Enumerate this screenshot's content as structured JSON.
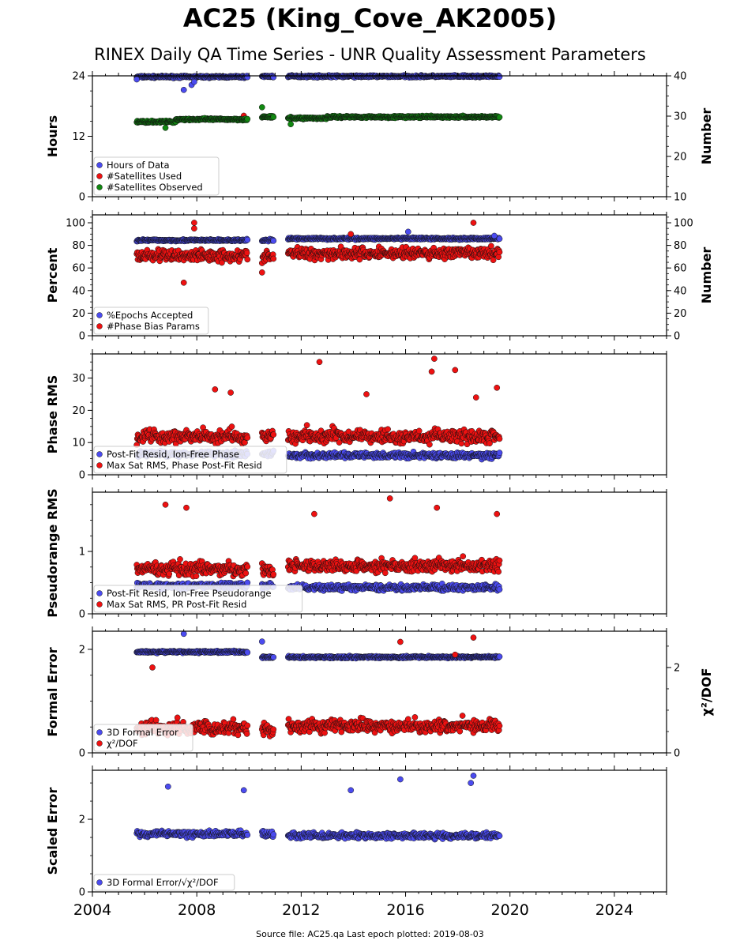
{
  "title": "AC25 (King_Cove_AK2005)",
  "subtitle": "RINEX Daily QA Time Series - UNR Quality Assessment Parameters",
  "footer": "Source file: AC25.qa Last epoch plotted: 2019-08-03",
  "colors": {
    "blue": "#4b4bef",
    "red": "#ee1111",
    "green": "#118811",
    "edge": "#111111"
  },
  "chart_data": [
    {
      "type": "scatter",
      "ylabel": "Hours",
      "ylabel_right": "Number",
      "xlim": [
        2004,
        2026
      ],
      "ylim": [
        0,
        24
      ],
      "ylim_right": [
        10,
        40
      ],
      "yticks": [
        "0",
        "12",
        "24"
      ],
      "yticks_right": [
        "10",
        "20",
        "30",
        "40"
      ],
      "legend_placement": "lower-left",
      "series": [
        {
          "name": "Hours of Data",
          "color": "blue",
          "axis": "left",
          "segments": [
            [
              2005.7,
              2009.95,
              23.8
            ],
            [
              2010.5,
              2010.95,
              23.9
            ],
            [
              2011.5,
              2019.6,
              23.9
            ]
          ],
          "outliers": [
            [
              2005.7,
              23.3
            ],
            [
              2007.5,
              21.2
            ],
            [
              2007.8,
              22.2
            ],
            [
              2007.9,
              22.8
            ]
          ]
        },
        {
          "name": "#Satellites Used",
          "color": "red",
          "axis": "right",
          "segments": [],
          "outliers": [
            [
              2009.8,
              30.1
            ]
          ]
        },
        {
          "name": "#Satellites Observed",
          "color": "green",
          "axis": "right",
          "segments": [
            [
              2005.7,
              2007.2,
              28.6
            ],
            [
              2007.2,
              2009.95,
              29.2
            ],
            [
              2010.5,
              2010.95,
              29.8
            ],
            [
              2011.5,
              2013.0,
              29.5
            ],
            [
              2013.0,
              2019.6,
              29.8
            ]
          ],
          "outliers": [
            [
              2010.5,
              32.2
            ],
            [
              2006.8,
              27.1
            ],
            [
              2011.6,
              28.0
            ]
          ]
        }
      ]
    },
    {
      "type": "scatter",
      "ylabel": "Percent",
      "ylabel_right": "Number",
      "xlim": [
        2004,
        2026
      ],
      "ylim": [
        0,
        107
      ],
      "ylim_right": [
        0,
        107
      ],
      "yticks": [
        "0",
        "20",
        "40",
        "60",
        "80",
        "100"
      ],
      "yticks_right": [
        "0",
        "20",
        "40",
        "60",
        "80",
        "100"
      ],
      "legend_placement": "lower-left",
      "series": [
        {
          "name": "%Epochs Accepted",
          "color": "blue",
          "axis": "left",
          "segments": [
            [
              2005.7,
              2009.95,
              84.5
            ],
            [
              2010.5,
              2010.95,
              84.5
            ],
            [
              2011.5,
              2019.6,
              86.0
            ]
          ],
          "outliers": [
            [
              2016.1,
              92.0
            ],
            [
              2019.4,
              88.5
            ]
          ]
        },
        {
          "name": "#Phase Bias Params",
          "color": "red",
          "axis": "right",
          "segments": [
            [
              2005.7,
              2009.95,
              71.0
            ],
            [
              2010.5,
              2010.95,
              70.0
            ],
            [
              2011.5,
              2019.6,
              73.0
            ]
          ],
          "outliers": [
            [
              2007.9,
              100.0
            ],
            [
              2007.9,
              95.0
            ],
            [
              2007.5,
              47.0
            ],
            [
              2010.5,
              56.0
            ],
            [
              2018.6,
              100.0
            ],
            [
              2013.9,
              90.0
            ]
          ]
        }
      ]
    },
    {
      "type": "scatter",
      "ylabel": "Phase RMS",
      "xlim": [
        2004,
        2026
      ],
      "ylim": [
        0,
        37.5
      ],
      "yticks": [
        "0",
        "10",
        "20",
        "30"
      ],
      "legend_placement": "lower-left",
      "series": [
        {
          "name": "Post-Fit Resid, Ion-Free Phase",
          "color": "blue",
          "axis": "left",
          "segments": [
            [
              2005.7,
              2009.95,
              6.5
            ],
            [
              2010.5,
              2010.95,
              6.5
            ],
            [
              2011.5,
              2019.6,
              6.0
            ]
          ],
          "outliers": []
        },
        {
          "name": "Max Sat RMS, Phase Post-Fit Resid",
          "color": "red",
          "axis": "left",
          "segments": [
            [
              2005.7,
              2009.95,
              11.5
            ],
            [
              2010.5,
              2010.95,
              12.0
            ],
            [
              2011.5,
              2019.6,
              11.5
            ]
          ],
          "outliers": [
            [
              2012.7,
              35.0
            ],
            [
              2017.1,
              36.0
            ],
            [
              2017.0,
              32.0
            ],
            [
              2017.9,
              32.5
            ],
            [
              2008.7,
              26.5
            ],
            [
              2009.3,
              25.5
            ],
            [
              2018.7,
              24.0
            ],
            [
              2019.5,
              27.0
            ],
            [
              2014.5,
              25.0
            ]
          ]
        }
      ]
    },
    {
      "type": "scatter",
      "ylabel": "Pseudorange RMS",
      "xlim": [
        2004,
        2026
      ],
      "ylim": [
        0,
        1.95
      ],
      "yticks": [
        "0",
        "1"
      ],
      "legend_placement": "lower-left",
      "series": [
        {
          "name": "Post-Fit Resid, Ion-Free Pseudorange",
          "color": "blue",
          "axis": "left",
          "segments": [
            [
              2005.7,
              2009.95,
              0.45
            ],
            [
              2010.5,
              2010.95,
              0.45
            ],
            [
              2011.5,
              2019.6,
              0.42
            ]
          ],
          "outliers": []
        },
        {
          "name": "Max Sat RMS, PR Post-Fit Resid",
          "color": "red",
          "axis": "left",
          "segments": [
            [
              2005.7,
              2009.95,
              0.7
            ],
            [
              2010.5,
              2010.95,
              0.7
            ],
            [
              2011.5,
              2019.6,
              0.75
            ]
          ],
          "outliers": [
            [
              2015.4,
              1.85
            ],
            [
              2006.8,
              1.75
            ],
            [
              2007.6,
              1.7
            ],
            [
              2012.5,
              1.6
            ],
            [
              2017.2,
              1.7
            ],
            [
              2019.5,
              1.6
            ]
          ]
        }
      ]
    },
    {
      "type": "scatter",
      "ylabel": "Formal Error",
      "ylabel_right": "χ²/DOF",
      "xlim": [
        2004,
        2026
      ],
      "ylim": [
        0,
        2.35
      ],
      "ylim_right": [
        0,
        2.85
      ],
      "yticks": [
        "0",
        "2"
      ],
      "yticks_right": [
        "0",
        "2"
      ],
      "legend_placement": "lower-left",
      "series": [
        {
          "name": "3D Formal Error",
          "color": "blue",
          "axis": "left",
          "segments": [
            [
              2005.7,
              2009.95,
              1.95
            ],
            [
              2010.5,
              2010.95,
              1.85
            ],
            [
              2011.5,
              2019.6,
              1.85
            ]
          ],
          "outliers": [
            [
              2007.5,
              2.3
            ],
            [
              2010.5,
              2.15
            ]
          ]
        },
        {
          "name": "χ²/DOF",
          "color": "red",
          "axis": "right",
          "segments": [
            [
              2005.7,
              2009.95,
              0.55
            ],
            [
              2010.5,
              2010.95,
              0.55
            ],
            [
              2011.5,
              2019.6,
              0.6
            ]
          ],
          "outliers": [
            [
              2018.6,
              2.7
            ],
            [
              2015.8,
              2.6
            ],
            [
              2006.3,
              2.0
            ],
            [
              2017.9,
              2.3
            ]
          ]
        }
      ]
    },
    {
      "type": "scatter",
      "ylabel": "Scaled Error",
      "xlim": [
        2004,
        2026
      ],
      "ylim": [
        0,
        3.35
      ],
      "yticks": [
        "0",
        "2"
      ],
      "legend_placement": "lower-left",
      "series": [
        {
          "name": "3D Formal Error/√χ²/DOF",
          "color": "blue",
          "axis": "left",
          "segments": [
            [
              2005.7,
              2009.95,
              1.6
            ],
            [
              2010.5,
              2010.95,
              1.6
            ],
            [
              2011.5,
              2019.6,
              1.55
            ]
          ],
          "outliers": [
            [
              2018.6,
              3.2
            ],
            [
              2018.5,
              3.0
            ],
            [
              2015.8,
              3.1
            ],
            [
              2006.9,
              2.9
            ],
            [
              2013.9,
              2.8
            ],
            [
              2009.8,
              2.8
            ]
          ]
        }
      ]
    }
  ],
  "x_axis": {
    "ticks": [
      "2004",
      "2008",
      "2012",
      "2016",
      "2020",
      "2024"
    ],
    "tick_values": [
      2004,
      2008,
      2012,
      2016,
      2020,
      2024
    ]
  }
}
